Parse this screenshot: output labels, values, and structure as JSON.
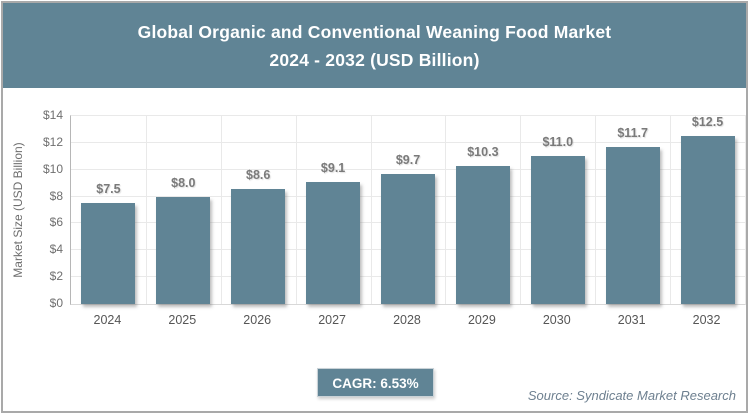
{
  "header": {
    "title_line1": "Global Organic and Conventional Weaning Food Market",
    "title_line2": "2024 - 2032 (USD Billion)"
  },
  "chart_data": {
    "type": "bar",
    "title": "Global Organic and Conventional Weaning Food Market 2024 - 2032 (USD Billion)",
    "categories": [
      "2024",
      "2025",
      "2026",
      "2027",
      "2028",
      "2029",
      "2030",
      "2031",
      "2032"
    ],
    "values": [
      7.5,
      8.0,
      8.6,
      9.1,
      9.7,
      10.3,
      11.0,
      11.7,
      12.5
    ],
    "bar_labels": [
      "$7.5",
      "$8.0",
      "$8.6",
      "$9.1",
      "$9.7",
      "$10.3",
      "$11.0",
      "$11.7",
      "$12.5"
    ],
    "xlabel": "",
    "ylabel": "Market Size (USD Billion)",
    "ylim": [
      0,
      14
    ],
    "ytick_step": 2,
    "ytick_labels": [
      "$0",
      "$2",
      "$4",
      "$6",
      "$8",
      "$10",
      "$12",
      "$14"
    ],
    "grid": true,
    "legend": "none"
  },
  "footer": {
    "cagr_label": "CAGR: 6.53%",
    "source": "Source: Syndicate Market Research"
  },
  "colors": {
    "accent": "#608495",
    "grid": "#e9e9e9",
    "axis": "#b6b6b6",
    "bar_value_text": "#7a7a7a",
    "x_tick_text": "#565656",
    "y_tick_text": "#6f6f6f",
    "source_text": "#6e8090",
    "frame_border": "#a9a9a9",
    "title_text": "#ffffff"
  }
}
